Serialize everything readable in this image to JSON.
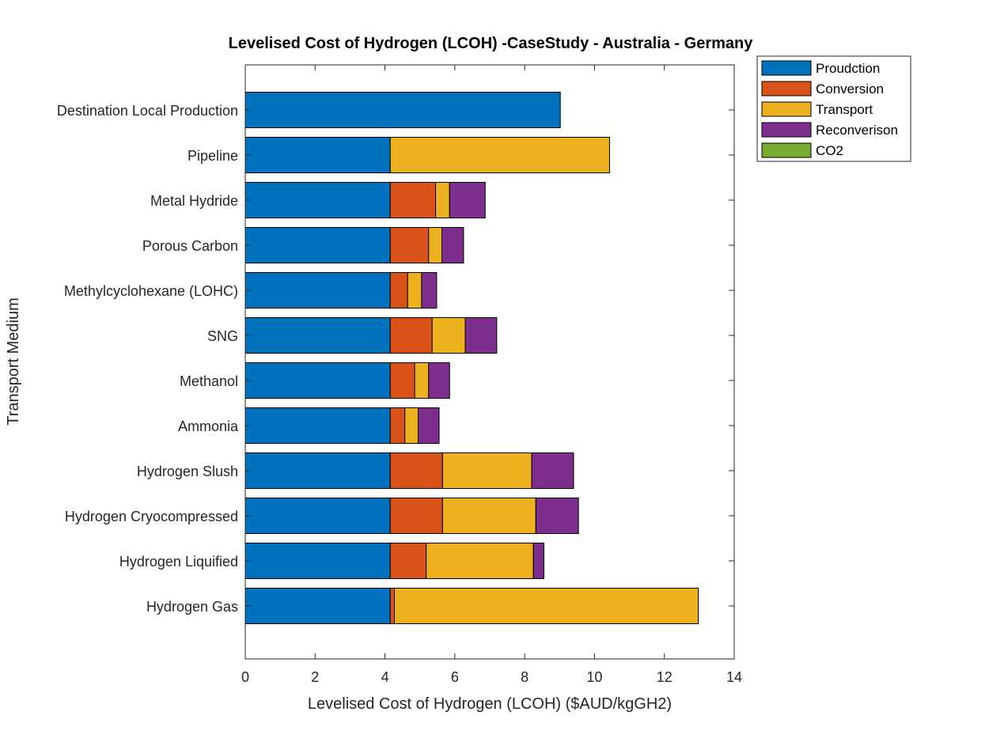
{
  "chart_data": {
    "type": "bar",
    "orientation": "horizontal",
    "stacked": true,
    "title": "Levelised Cost of Hydrogen (LCOH) -CaseStudy - Australia - Germany",
    "xlabel": "Levelised Cost of Hydrogen (LCOH) ($AUD/kgGH2)",
    "ylabel": "Transport Medium",
    "xlim": [
      0,
      14
    ],
    "xticks": [
      "0",
      "2",
      "4",
      "6",
      "8",
      "10",
      "12",
      "14"
    ],
    "grid": false,
    "legend_position": "outside-top-right",
    "categories": [
      "Hydrogen Gas",
      "Hydrogen Liquified",
      "Hydrogen Cryocompressed",
      "Hydrogen Slush",
      "Ammonia",
      "Methanol",
      "SNG",
      "Methylcyclohexane (LOHC)",
      "Porous Carbon",
      "Metal Hydride",
      "Pipeline",
      "Destination Local Production"
    ],
    "series": [
      {
        "name": "Proudction",
        "color": "#0072BD",
        "values": [
          4.15,
          4.15,
          4.15,
          4.15,
          4.15,
          4.15,
          4.15,
          4.15,
          4.15,
          4.15,
          4.15,
          9.02
        ]
      },
      {
        "name": "Conversion",
        "color": "#D95319",
        "values": [
          0.12,
          1.03,
          1.5,
          1.5,
          0.42,
          0.7,
          1.2,
          0.5,
          1.1,
          1.3,
          0,
          0
        ]
      },
      {
        "name": "Transport",
        "color": "#EDB120",
        "values": [
          8.7,
          3.07,
          2.67,
          2.55,
          0.38,
          0.4,
          0.95,
          0.4,
          0.38,
          0.4,
          6.28,
          0
        ]
      },
      {
        "name": "Reconverison",
        "color": "#7E2F8E",
        "values": [
          0,
          0.3,
          1.22,
          1.2,
          0.6,
          0.6,
          0.9,
          0.43,
          0.62,
          1.02,
          0,
          0
        ]
      },
      {
        "name": "CO2",
        "color": "#77AC30",
        "values": [
          0,
          0,
          0,
          0,
          0,
          0,
          0,
          0,
          0,
          0,
          0,
          0
        ]
      }
    ]
  }
}
